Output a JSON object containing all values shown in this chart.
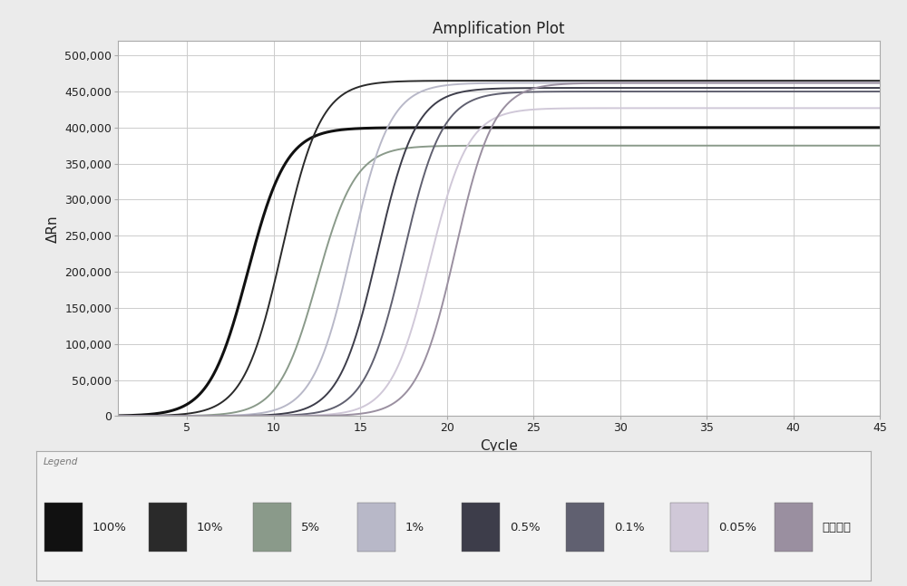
{
  "title": "Amplification Plot",
  "xlabel": "Cycle",
  "ylabel": "ΔRn",
  "xlim": [
    1,
    45
  ],
  "ylim": [
    0,
    520000
  ],
  "yticks": [
    0,
    50000,
    100000,
    150000,
    200000,
    250000,
    300000,
    350000,
    400000,
    450000,
    500000
  ],
  "ytick_labels": [
    "0",
    "50,000",
    "100,000",
    "150,000",
    "200,000",
    "250,000",
    "300,000",
    "350,000",
    "400,000",
    "450,000",
    "500,000"
  ],
  "xticks": [
    5,
    10,
    15,
    20,
    25,
    30,
    35,
    40,
    45
  ],
  "curves": [
    {
      "label": "100%",
      "color": "#111111",
      "midpoint": 8.5,
      "steepness": 0.9,
      "plateau": 400000,
      "lw": 2.2
    },
    {
      "label": "10%",
      "color": "#2a2a2a",
      "midpoint": 10.5,
      "steepness": 0.9,
      "plateau": 465000,
      "lw": 1.4
    },
    {
      "label": "5%",
      "color": "#8a9a8a",
      "midpoint": 12.5,
      "steepness": 0.9,
      "plateau": 375000,
      "lw": 1.4
    },
    {
      "label": "1%",
      "color": "#b8b8c8",
      "midpoint": 14.5,
      "steepness": 0.9,
      "plateau": 462000,
      "lw": 1.4
    },
    {
      "label": "0.5%",
      "color": "#3d3d4a",
      "midpoint": 16.0,
      "steepness": 0.9,
      "plateau": 455000,
      "lw": 1.4
    },
    {
      "label": "0.1%",
      "color": "#606070",
      "midpoint": 17.5,
      "steepness": 0.9,
      "plateau": 450000,
      "lw": 1.4
    },
    {
      "label": "0.05%",
      "color": "#d0c8d8",
      "midpoint": 19.0,
      "steepness": 0.9,
      "plateau": 427000,
      "lw": 1.4
    },
    {
      "label": "阴性对照",
      "color": "#9a8fa0",
      "midpoint": 20.5,
      "steepness": 0.9,
      "plateau": 462000,
      "lw": 1.4
    }
  ],
  "bg_color": "#ebebeb",
  "plot_bg_color": "#ffffff",
  "grid_color": "#cccccc",
  "legend_title": "Legend",
  "fig_width": 10.0,
  "fig_height": 6.47
}
